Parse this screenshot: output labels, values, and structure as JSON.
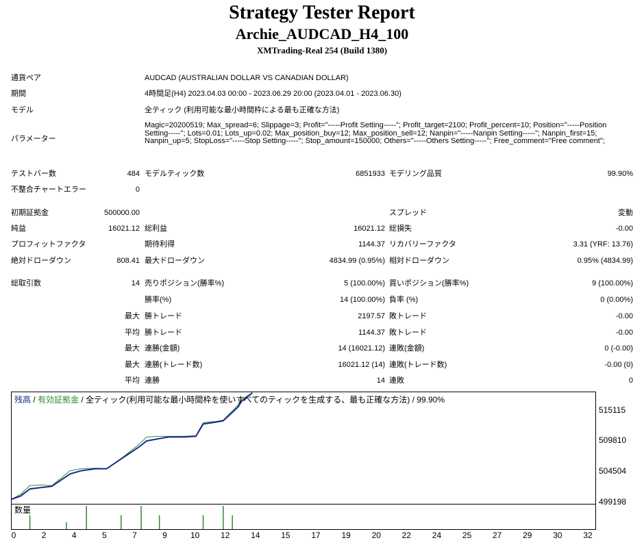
{
  "report": {
    "title": "Strategy Tester Report",
    "subtitle": "Archie_AUDCAD_H4_100",
    "build": "XMTrading-Real 254 (Build 1380)"
  },
  "info": {
    "symbol_label": "通貨ペア",
    "symbol_value": "AUDCAD (AUSTRALIAN DOLLAR VS CANADIAN DOLLAR)",
    "period_label": "期間",
    "period_value": "4時間足(H4) 2023.04.03 00:00 - 2023.06.29 20:00 (2023.04.01 - 2023.06.30)",
    "model_label": "モデル",
    "model_value": "全ティック (利用可能な最小時間枠による最も正確な方法)",
    "params_label": "パラメーター",
    "params_value": "Magic=20200519; Max_spread=6; Slippage=3; Profit=\"-----Profit Setting-----\"; Profit_target=2100; Profit_percent=10; Position=\"-----Position Setting-----\"; Lots=0.01; Lots_up=0.02; Max_position_buy=12; Max_position_sell=12; Nanpin=\"-----Nanpin Setting-----\"; Nanpin_first=15; Nanpin_up=5; StopLoss=\"-----Stop Setting-----\"; Stop_amount=150000; Others=\"-----Others Setting-----\"; Free_comment=\"Free comment\";"
  },
  "stats": {
    "bars_label": "テストバー数",
    "bars_value": "484",
    "ticks_label": "モデルティック数",
    "ticks_value": "6851933",
    "quality_label": "モデリング品質",
    "quality_value": "99.90%",
    "mismatch_label": "不整合チャートエラー",
    "mismatch_value": "0",
    "deposit_label": "初期証拠金",
    "deposit_value": "500000.00",
    "spread_label": "スプレッド",
    "spread_value": "変動",
    "net_label": "純益",
    "net_value": "16021.12",
    "gross_profit_label": "総利益",
    "gross_profit_value": "16021.12",
    "gross_loss_label": "総損失",
    "gross_loss_value": "-0.00",
    "pf_label": "プロフィットファクタ",
    "expected_label": "期待利得",
    "expected_value": "1144.37",
    "recovery_label": "リカバリーファクタ",
    "recovery_value": "3.31 (YRF: 13.76)",
    "abs_dd_label": "絶対ドローダウン",
    "abs_dd_value": "808.41",
    "max_dd_label": "最大ドローダウン",
    "max_dd_value": "4834.99 (0.95%)",
    "rel_dd_label": "相対ドローダウン",
    "rel_dd_value": "0.95% (4834.99)",
    "trades_label": "総取引数",
    "trades_value": "14",
    "short_label": "売りポジション(勝率%)",
    "short_value": "5 (100.00%)",
    "long_label": "買いポジション(勝率%)",
    "long_value": "9 (100.00%)",
    "win_rate_label": "勝率(%)",
    "win_rate_value": "14 (100.00%)",
    "loss_rate_label": "負率 (%)",
    "loss_rate_value": "0 (0.00%)",
    "max_label": "最大",
    "avg_label": "平均",
    "largest_win_label": "勝トレード",
    "largest_win_value": "2197.57",
    "largest_loss_label": "敗トレード",
    "largest_loss_value": "-0.00",
    "avg_win_label": "勝トレード",
    "avg_win_value": "1144.37",
    "avg_loss_label": "敗トレード",
    "avg_loss_value": "-0.00",
    "max_consec_win_amt_label": "連勝(金額)",
    "max_consec_win_amt_value": "14 (16021.12)",
    "max_consec_loss_amt_label": "連敗(金額)",
    "max_consec_loss_amt_value": "0 (-0.00)",
    "max_consec_win_cnt_label": "連勝(トレード数)",
    "max_consec_win_cnt_value": "16021.12 (14)",
    "max_consec_loss_cnt_label": "連敗(トレード数)",
    "max_consec_loss_cnt_value": "-0.00 (0)",
    "avg_consec_win_label": "連勝",
    "avg_consec_win_value": "14",
    "avg_consec_loss_label": "連敗",
    "avg_consec_loss_value": "0"
  },
  "chart_legend": {
    "balance": "残高",
    "sep1": " / ",
    "equity": "有効証拠金",
    "sep2": " / ",
    "method": "全ティック(利用可能な最小時間枠を使いすべてのティックを生成する、最も正確な方法) / 99.90%"
  },
  "volume_label": "数量",
  "colors": {
    "balance": "#1a2a8a",
    "equity": "#2e8b2e",
    "volume": "#2e8b2e"
  },
  "chart_data": {
    "type": "line",
    "yticks": [
      "515115",
      "509810",
      "504504",
      "499198"
    ],
    "xticks": [
      "0",
      "2",
      "4",
      "5",
      "7",
      "9",
      "10",
      "12",
      "14",
      "15",
      "17",
      "19",
      "20",
      "22",
      "24",
      "25",
      "27",
      "29",
      "30",
      "32"
    ],
    "ylim": [
      499198,
      516400
    ],
    "xlim": [
      0,
      32
    ],
    "series": [
      {
        "name": "残高",
        "x": [
          0,
          0.5,
          1,
          1.6,
          2.2,
          3.2,
          3.8,
          4.6,
          5.2,
          6.1,
          7.0,
          7.4,
          8.0,
          8.6,
          9.4,
          10.1,
          10.5,
          11.2,
          11.6,
          12.4,
          12.6,
          13.2
        ],
        "y": [
          499900,
          500400,
          501500,
          501700,
          501900,
          503800,
          504300,
          504600,
          504600,
          506300,
          508000,
          508900,
          509200,
          509500,
          509500,
          509600,
          511500,
          511800,
          512000,
          514100,
          515000,
          516300
        ]
      },
      {
        "name": "有効証拠金",
        "x": [
          0,
          0.5,
          1,
          1.6,
          2.2,
          3.2,
          3.8,
          4.6,
          5.2,
          6.1,
          7.0,
          7.4,
          8.0,
          8.6,
          9.4,
          10.1,
          10.5,
          11.2,
          11.6,
          12.4,
          12.6,
          13.2
        ],
        "y": [
          499900,
          500700,
          502000,
          502100,
          502000,
          504300,
          504600,
          504700,
          504600,
          506400,
          508400,
          509500,
          509600,
          509600,
          509600,
          509700,
          511700,
          511900,
          512100,
          514400,
          515300,
          516300
        ]
      }
    ],
    "volume": {
      "x": [
        1,
        3,
        4.1,
        6,
        7.1,
        8.1,
        10.5,
        11.6,
        12.1
      ],
      "values": [
        0.6,
        0.3,
        1,
        0.6,
        1,
        0.6,
        0.6,
        1,
        0.6
      ]
    }
  }
}
